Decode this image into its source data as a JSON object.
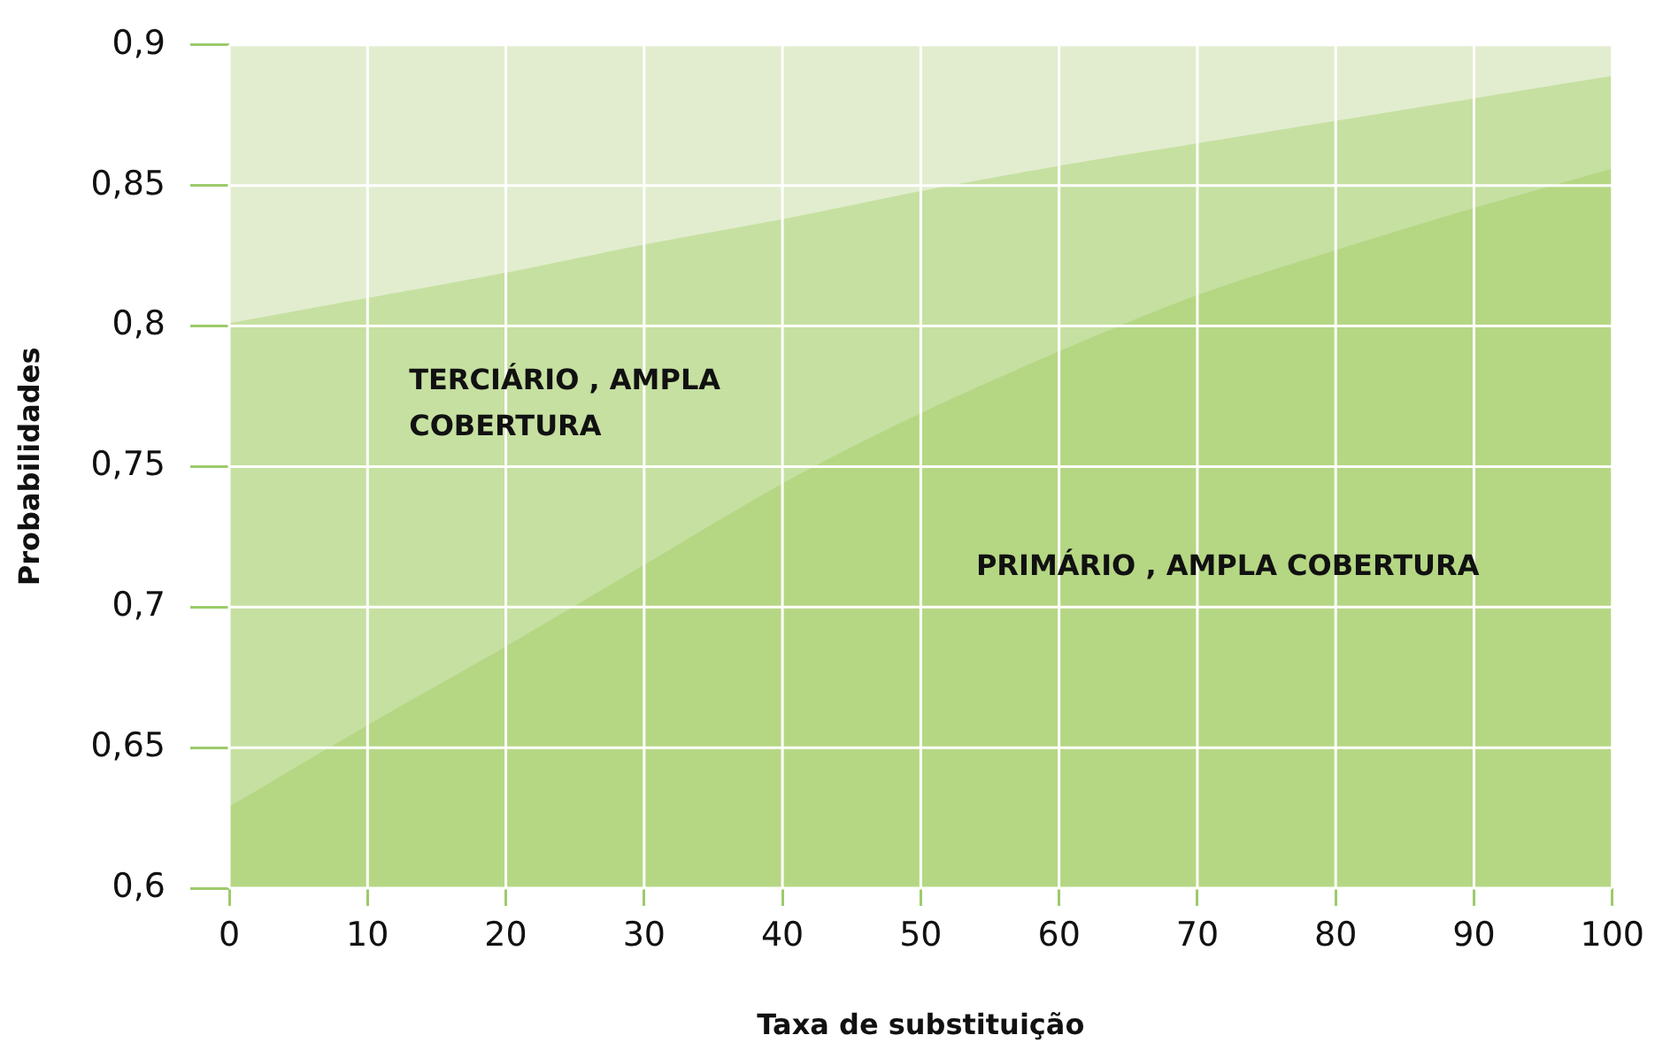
{
  "chart_data": {
    "type": "area",
    "xlabel": "Taxa de substituição",
    "ylabel": "Probabilidades",
    "x": [
      0,
      10,
      20,
      30,
      40,
      50,
      60,
      70,
      80,
      90,
      100
    ],
    "series": [
      {
        "name": "TERCIÁRIO , AMPLA COBERTURA",
        "color": "#c6e0a1",
        "values": [
          0.801,
          0.81,
          0.819,
          0.829,
          0.838,
          0.848,
          0.857,
          0.865,
          0.873,
          0.881,
          0.889
        ]
      },
      {
        "name": "PRIMÁRIO , AMPLA COBERTURA",
        "color": "#b5d784",
        "values": [
          0.629,
          0.658,
          0.686,
          0.715,
          0.744,
          0.769,
          0.791,
          0.811,
          0.827,
          0.842,
          0.856
        ]
      }
    ],
    "xlim": [
      0,
      100
    ],
    "xticks": [
      0,
      10,
      20,
      30,
      40,
      50,
      60,
      70,
      80,
      90,
      100
    ],
    "ylim": [
      0.6,
      0.9
    ],
    "yticks": [
      {
        "value": 0.6,
        "label": "0,6"
      },
      {
        "value": 0.65,
        "label": "0,65"
      },
      {
        "value": 0.7,
        "label": "0,7"
      },
      {
        "value": 0.75,
        "label": "0,75"
      },
      {
        "value": 0.8,
        "label": "0,8"
      },
      {
        "value": 0.85,
        "label": "0,85"
      },
      {
        "value": 0.9,
        "label": "0,9"
      }
    ],
    "bands": [
      {
        "axis": "y",
        "from": 0.6,
        "to": 0.9,
        "color": "#e2edcf"
      }
    ],
    "grid": true,
    "legend": false
  }
}
